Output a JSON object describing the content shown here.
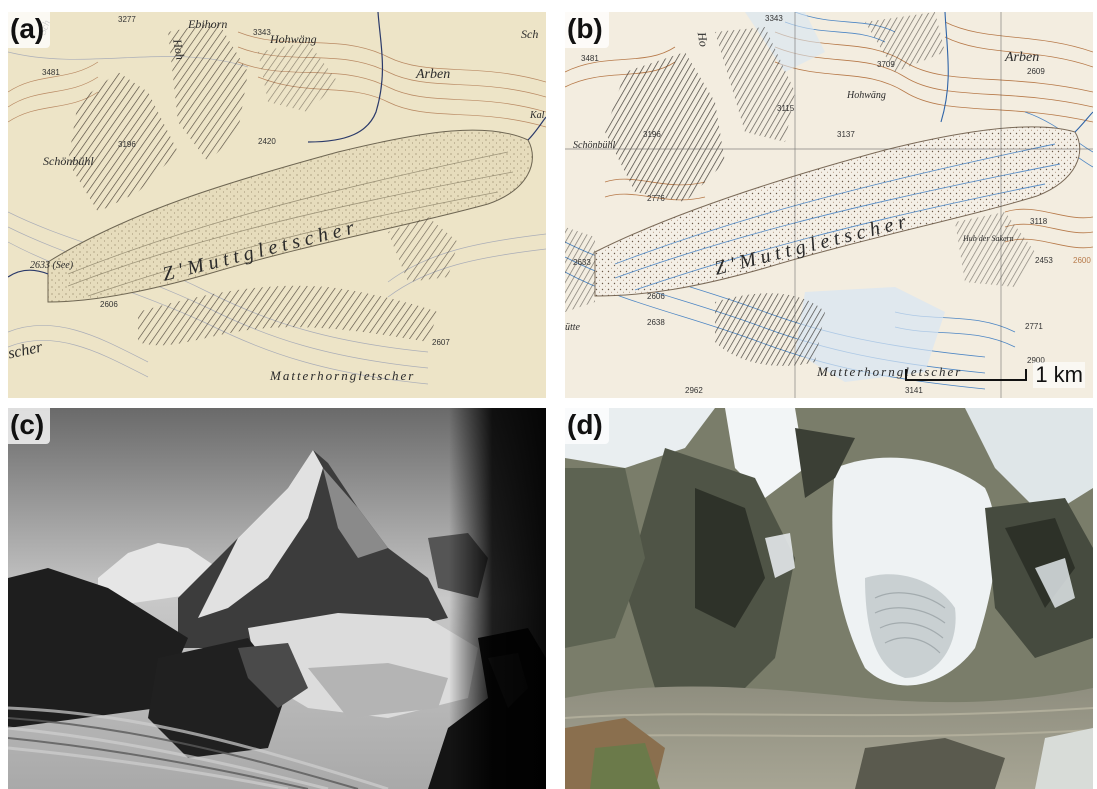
{
  "panels": {
    "a": {
      "label": "(a)",
      "labels": {
        "ebihorn": "Ebihorn",
        "hohwang": "Hohwäng",
        "arben": "Arben",
        "schonbuhl": "Schönbühl",
        "glacier": "Z'Muttgletscher",
        "matterhorngletscher": "Matterhorngletscher",
        "sce": "2633 (See)",
        "hoh": "Hoh",
        "sch": "Sch",
        "kal": "Kal",
        "scher": "scher",
        "sch_top": "Sch"
      },
      "elevations": {
        "e3277": "3277",
        "e3343": "3343",
        "e3481": "3481",
        "e3196": "3196",
        "e2420": "2420",
        "e2606": "2606",
        "e2607": "2607"
      }
    },
    "b": {
      "label": "(b)",
      "labels": {
        "arben": "Arben",
        "hohwang": "Hohwäng",
        "schonbuhl": "Schönbühl",
        "glacier": "Z'Muttgletscher",
        "matterhorngletscher": "Matterhorngletscher",
        "hubel": "Hub der Sakern",
        "ho": "Ho",
        "hutte": "ütte"
      },
      "elevations": {
        "e3343": "3343",
        "e3481": "3481",
        "e3709": "3709",
        "e2609": "2609",
        "e3196": "3196",
        "e3115": "3115",
        "e3137": "3137",
        "e2776": "2776",
        "e2633": "2633",
        "e2606": "2606",
        "e2638": "2638",
        "e3118": "3118",
        "e2453": "2453",
        "e2600": "2600",
        "e2771": "2771",
        "e2900": "2900",
        "e2962": "2962",
        "e3141": "3141"
      },
      "scale": "1 km"
    },
    "c": {
      "label": "(c)"
    },
    "d": {
      "label": "(d)"
    }
  },
  "colors": {
    "paper": "#ede4c7",
    "contour_brown": "#b77a4a",
    "contour_blue": "#4d86c4",
    "ridge": "#2e2a25",
    "glacier_a": "#e6dcbc",
    "glacier_b": "#f4efe6",
    "photo_sky": "#bfbfbf",
    "aerial_snow": "#e9eef0"
  }
}
